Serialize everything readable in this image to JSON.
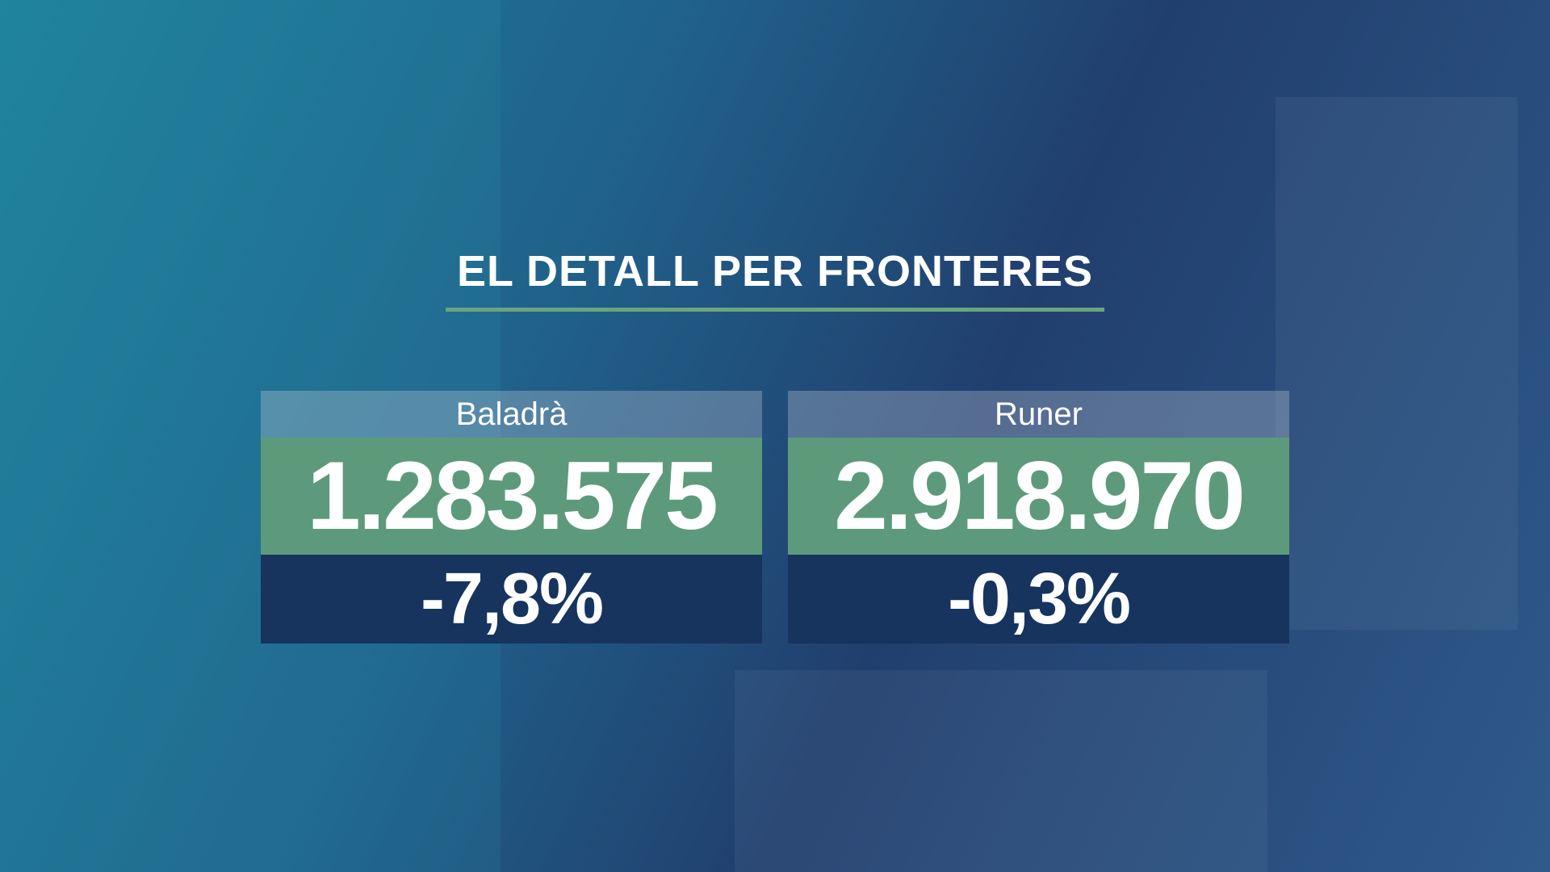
{
  "header": {
    "title": "EL DETALL PER FRONTERES"
  },
  "cards": [
    {
      "name": "Baladrà",
      "value": "1.283.575",
      "change": "-7,8%"
    },
    {
      "name": "Runer",
      "value": "2.918.970",
      "change": "-0,3%"
    }
  ]
}
